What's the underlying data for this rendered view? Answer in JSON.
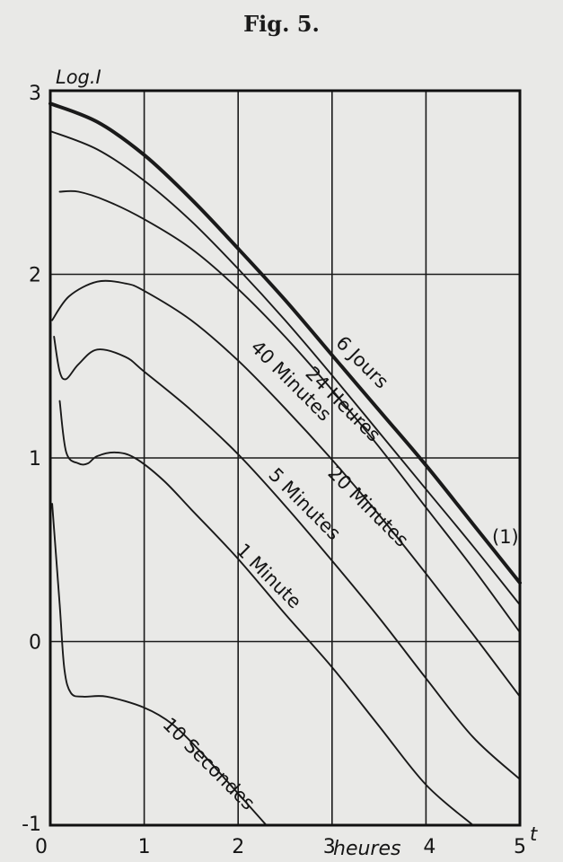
{
  "figure": {
    "title": "Fig. 5."
  },
  "chart_data": {
    "type": "line",
    "title": "Fig. 5.",
    "ylabel": "Log.I",
    "xlabel": "t",
    "x_unit_label": "heures",
    "xlim": [
      0,
      5
    ],
    "ylim": [
      -1,
      3
    ],
    "x_ticks": [
      "0",
      "1",
      "2",
      "3",
      "4",
      "5"
    ],
    "y_ticks": [
      "-1",
      "0",
      "1",
      "2",
      "3"
    ],
    "grid": true,
    "series": [
      {
        "name": "6 Jours",
        "extra_label": "(1)",
        "bold": true,
        "points": [
          [
            0,
            2.93
          ],
          [
            0.5,
            2.83
          ],
          [
            1,
            2.65
          ],
          [
            1.5,
            2.41
          ],
          [
            2,
            2.14
          ],
          [
            2.5,
            1.86
          ],
          [
            3,
            1.56
          ],
          [
            3.5,
            1.26
          ],
          [
            4,
            0.96
          ],
          [
            4.5,
            0.64
          ],
          [
            5,
            0.32
          ]
        ]
      },
      {
        "name": "24 Heures",
        "points": [
          [
            0,
            2.78
          ],
          [
            0.5,
            2.68
          ],
          [
            1,
            2.51
          ],
          [
            1.5,
            2.29
          ],
          [
            2,
            2.03
          ],
          [
            2.5,
            1.75
          ],
          [
            3,
            1.45
          ],
          [
            3.5,
            1.14
          ],
          [
            4,
            0.83
          ],
          [
            4.5,
            0.52
          ],
          [
            5,
            0.2
          ]
        ]
      },
      {
        "name": "20 Minutes",
        "points": [
          [
            0.1,
            2.45
          ],
          [
            0.3,
            2.45
          ],
          [
            0.6,
            2.4
          ],
          [
            1,
            2.3
          ],
          [
            1.5,
            2.14
          ],
          [
            2,
            1.92
          ],
          [
            2.5,
            1.66
          ],
          [
            3,
            1.37
          ],
          [
            3.5,
            1.06
          ],
          [
            4,
            0.73
          ],
          [
            4.5,
            0.4
          ],
          [
            5,
            0.05
          ]
        ]
      },
      {
        "name": "40 Minutes",
        "points": [
          [
            0.02,
            1.75
          ],
          [
            0.2,
            1.88
          ],
          [
            0.5,
            1.96
          ],
          [
            0.8,
            1.95
          ],
          [
            1,
            1.91
          ],
          [
            1.5,
            1.75
          ],
          [
            2,
            1.53
          ],
          [
            2.5,
            1.27
          ],
          [
            3,
            0.99
          ],
          [
            3.5,
            0.69
          ],
          [
            4,
            0.37
          ],
          [
            4.5,
            0.04
          ],
          [
            5,
            -0.3
          ]
        ]
      },
      {
        "name": "5 Minutes",
        "points": [
          [
            0.04,
            1.66
          ],
          [
            0.1,
            1.47
          ],
          [
            0.17,
            1.43
          ],
          [
            0.3,
            1.51
          ],
          [
            0.5,
            1.59
          ],
          [
            0.8,
            1.55
          ],
          [
            1,
            1.47
          ],
          [
            1.5,
            1.26
          ],
          [
            2,
            1.02
          ],
          [
            2.5,
            0.74
          ],
          [
            3,
            0.44
          ],
          [
            3.5,
            0.13
          ],
          [
            4,
            -0.2
          ],
          [
            4.5,
            -0.52
          ],
          [
            5,
            -0.75
          ]
        ]
      },
      {
        "name": "1 Minute",
        "points": [
          [
            0.1,
            1.31
          ],
          [
            0.17,
            1.03
          ],
          [
            0.3,
            0.97
          ],
          [
            0.4,
            0.97
          ],
          [
            0.5,
            1.01
          ],
          [
            0.7,
            1.03
          ],
          [
            0.9,
            1.0
          ],
          [
            1.2,
            0.88
          ],
          [
            1.5,
            0.72
          ],
          [
            2,
            0.45
          ],
          [
            2.5,
            0.15
          ],
          [
            3,
            -0.14
          ],
          [
            3.5,
            -0.46
          ],
          [
            4,
            -0.78
          ],
          [
            4.5,
            -1.0
          ]
        ]
      },
      {
        "name": "10 Secondes",
        "points": [
          [
            0.02,
            0.75
          ],
          [
            0.1,
            0.2
          ],
          [
            0.15,
            -0.15
          ],
          [
            0.22,
            -0.28
          ],
          [
            0.35,
            -0.3
          ],
          [
            0.6,
            -0.3
          ],
          [
            1,
            -0.36
          ],
          [
            1.3,
            -0.45
          ],
          [
            1.6,
            -0.6
          ],
          [
            1.9,
            -0.77
          ],
          [
            2.3,
            -1.0
          ]
        ]
      }
    ]
  }
}
